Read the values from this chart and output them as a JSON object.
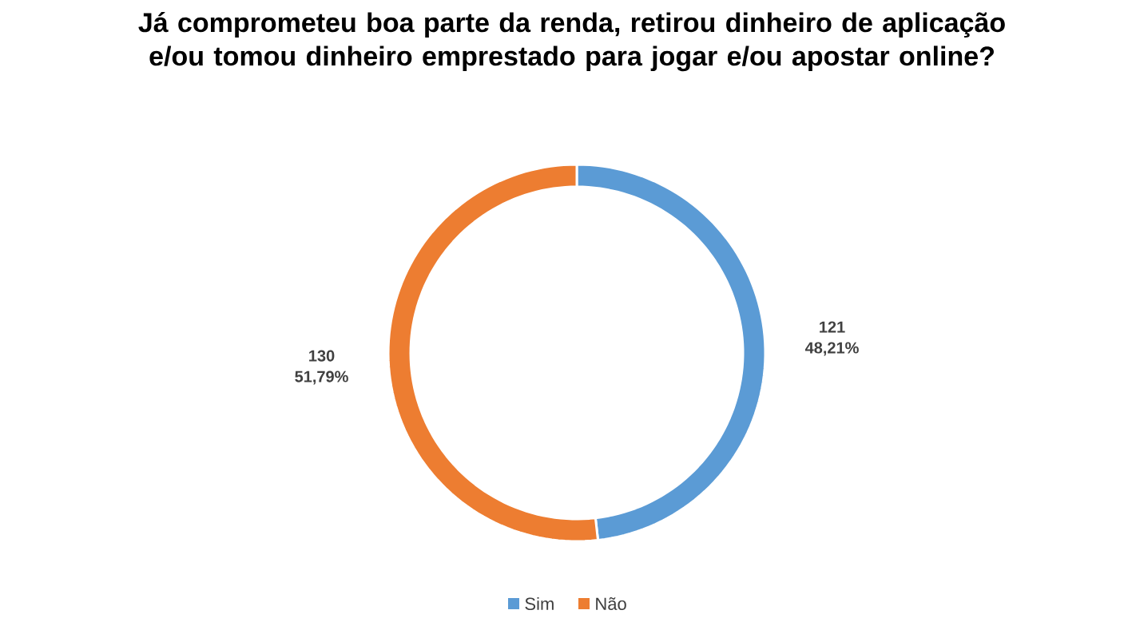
{
  "chart_data": {
    "type": "donut",
    "title": "Já comprometeu boa parte da renda, retirou dinheiro de aplicação e/ou tomou dinheiro emprestado para jogar e/ou apostar online?",
    "categories": [
      "Sim",
      "Não"
    ],
    "values": [
      121,
      130
    ],
    "colors": [
      "#5b9bd5",
      "#ed7d31"
    ],
    "value_labels": [
      "121 48,21%",
      "130 51,79%"
    ],
    "legend": "bottom"
  }
}
